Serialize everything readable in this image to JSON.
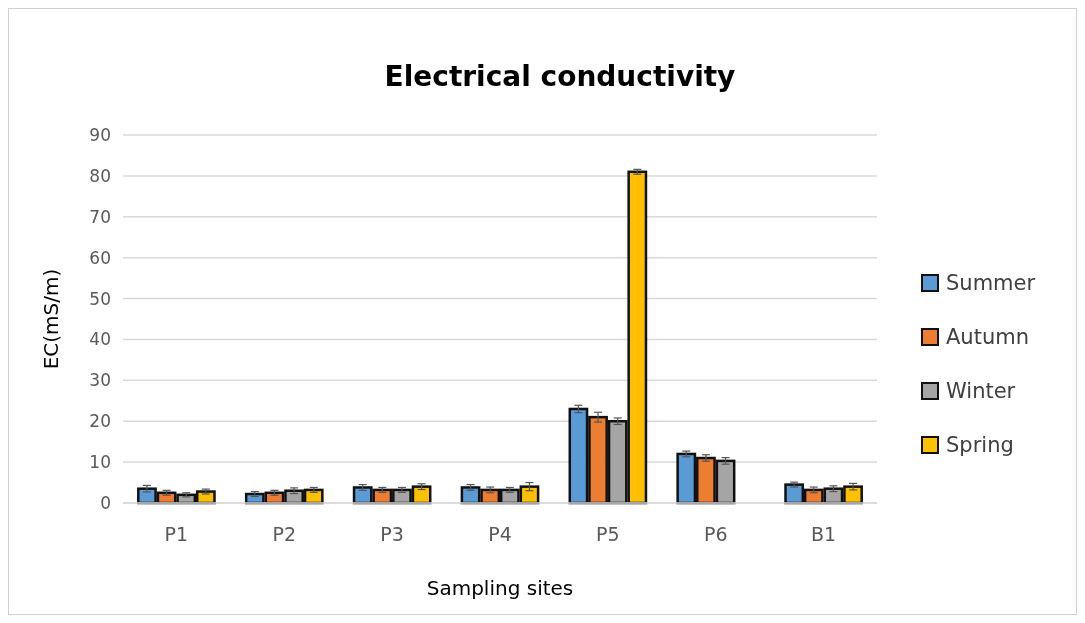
{
  "chart_data": {
    "type": "bar",
    "title": "Electrical conductivity",
    "xlabel": "Sampling sites",
    "ylabel": "EC(mS/m)",
    "categories": [
      "P1",
      "P2",
      "P3",
      "P4",
      "P5",
      "P6",
      "B1"
    ],
    "series": [
      {
        "name": "Summer",
        "color": "#5b9bd5",
        "values": [
          3.5,
          2.2,
          3.8,
          3.8,
          23,
          12,
          4.5
        ],
        "errors": [
          0.8,
          0.6,
          0.7,
          0.7,
          0.9,
          0.7,
          0.6
        ]
      },
      {
        "name": "Autumn",
        "color": "#ed7d31",
        "values": [
          2.5,
          2.5,
          3.2,
          3.2,
          21,
          11,
          3.2
        ],
        "errors": [
          0.6,
          0.6,
          0.6,
          0.7,
          1.2,
          0.8,
          0.7
        ]
      },
      {
        "name": "Winter",
        "color": "#a5a5a5",
        "values": [
          2,
          3,
          3.2,
          3.2,
          20,
          10.3,
          3.5
        ],
        "errors": [
          0.5,
          0.7,
          0.6,
          0.6,
          0.8,
          0.8,
          0.7
        ]
      },
      {
        "name": "Spring",
        "color": "#ffc000",
        "values": [
          2.8,
          3.2,
          4,
          4,
          81,
          null,
          4
        ],
        "errors": [
          0.6,
          0.6,
          0.7,
          1.0,
          0.6,
          null,
          0.8
        ]
      }
    ],
    "ylim": [
      0,
      90
    ],
    "yticks": [
      0,
      10,
      20,
      30,
      40,
      50,
      60,
      70,
      80,
      90
    ],
    "grid": "y",
    "legend": "right"
  }
}
